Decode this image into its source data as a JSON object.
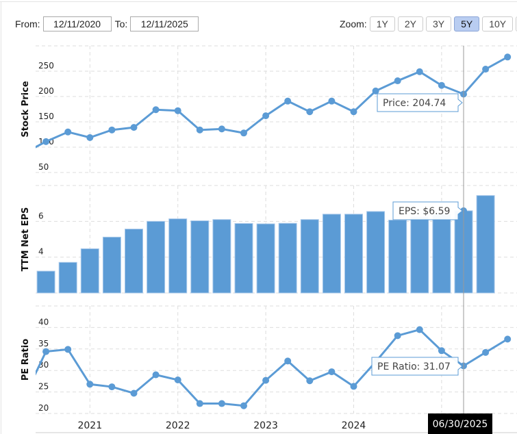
{
  "controls": {
    "from_label": "From:",
    "from_value": "12/11/2020",
    "to_label": "To:",
    "to_value": "12/11/2025",
    "zoom_label": "Zoom:",
    "zoom_buttons": [
      "1Y",
      "2Y",
      "3Y",
      "5Y",
      "10Y"
    ],
    "zoom_selected": "5Y"
  },
  "colors": {
    "series": "#5b9bd5",
    "bar_border": "#a8c8ea",
    "grid": "#dddddd",
    "crosshair": "#999999"
  },
  "chart_data": [
    {
      "type": "line",
      "ylabel": "Stock Price",
      "ylim": [
        50,
        300
      ],
      "yticks": [
        50,
        100,
        150,
        200,
        250
      ],
      "grid": true,
      "values": [
        88,
        111,
        130,
        119,
        134,
        139,
        174,
        172,
        134,
        136,
        128,
        162,
        191,
        170,
        191,
        170,
        211,
        231,
        249,
        222,
        204.74,
        254,
        278
      ],
      "tooltip": {
        "label": "Price: 204.74"
      }
    },
    {
      "type": "bar",
      "ylabel": "TTM Net EPS",
      "ylim": [
        2,
        8
      ],
      "yticks": [
        2,
        4,
        6
      ],
      "grid": true,
      "values": [
        null,
        3.22,
        3.71,
        4.47,
        5.12,
        5.57,
        6.0,
        6.14,
        6.03,
        6.1,
        5.88,
        5.86,
        5.89,
        6.1,
        6.4,
        6.4,
        6.55,
        6.07,
        6.25,
        6.4,
        6.59,
        7.44,
        null
      ],
      "tooltip": {
        "label": "EPS: $6.59"
      }
    },
    {
      "type": "line",
      "ylabel": "PE Ratio",
      "ylim": [
        20,
        45
      ],
      "yticks": [
        20,
        25,
        30,
        35,
        40
      ],
      "grid": true,
      "values": [
        23.7,
        34.4,
        34.9,
        26.8,
        26.2,
        24.7,
        29.0,
        27.8,
        22.3,
        22.3,
        21.8,
        27.7,
        32.2,
        27.6,
        29.7,
        26.3,
        32.0,
        38.1,
        39.5,
        34.6,
        31.07,
        34.2,
        37.3
      ],
      "tooltip": {
        "label": "PE Ratio: 31.07"
      }
    }
  ],
  "x_axis": {
    "year_labels": [
      {
        "label": "2021",
        "index": 3
      },
      {
        "label": "2022",
        "index": 7
      },
      {
        "label": "2023",
        "index": 11
      },
      {
        "label": "2024",
        "index": 15
      },
      {
        "label": "",
        "index": 19
      }
    ],
    "highlight_index": 20,
    "highlight_label": "06/30/2025"
  }
}
